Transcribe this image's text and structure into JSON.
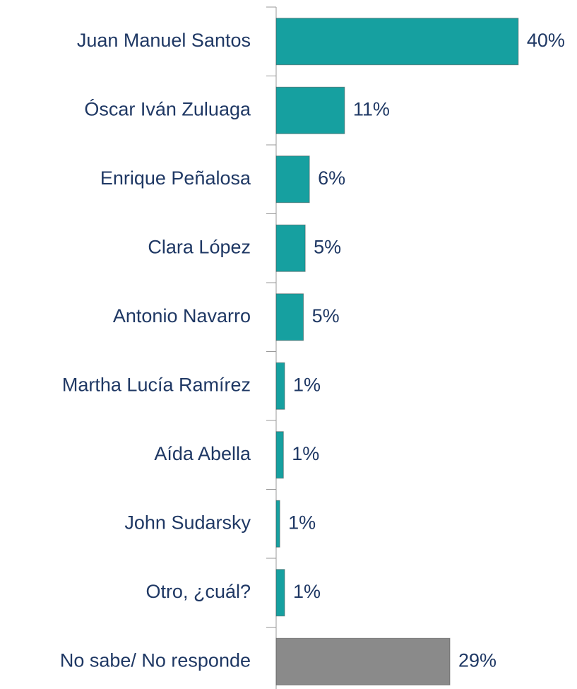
{
  "chart_data": {
    "type": "bar",
    "orientation": "horizontal",
    "categories": [
      "Juan Manuel Santos",
      "Óscar Iván Zuluaga",
      "Enrique Peñalosa",
      "Clara López",
      "Antonio Navarro",
      "Martha Lucía Ramírez",
      "Aída Abella",
      "John Sudarsky",
      "Otro, ¿cuál?",
      "No sabe/ No responde"
    ],
    "values": [
      40,
      11.3,
      5.5,
      4.8,
      4.5,
      1.4,
      1.2,
      0.6,
      1.4,
      28.7
    ],
    "value_labels": [
      "40%",
      "11%",
      "6%",
      "5%",
      "5%",
      "1%",
      "1%",
      "1%",
      "1%",
      "29%"
    ],
    "colors": [
      "#16a0a0",
      "#16a0a0",
      "#16a0a0",
      "#16a0a0",
      "#16a0a0",
      "#16a0a0",
      "#16a0a0",
      "#16a0a0",
      "#16a0a0",
      "#8a8a8a"
    ],
    "xlim": [
      0,
      49
    ]
  }
}
